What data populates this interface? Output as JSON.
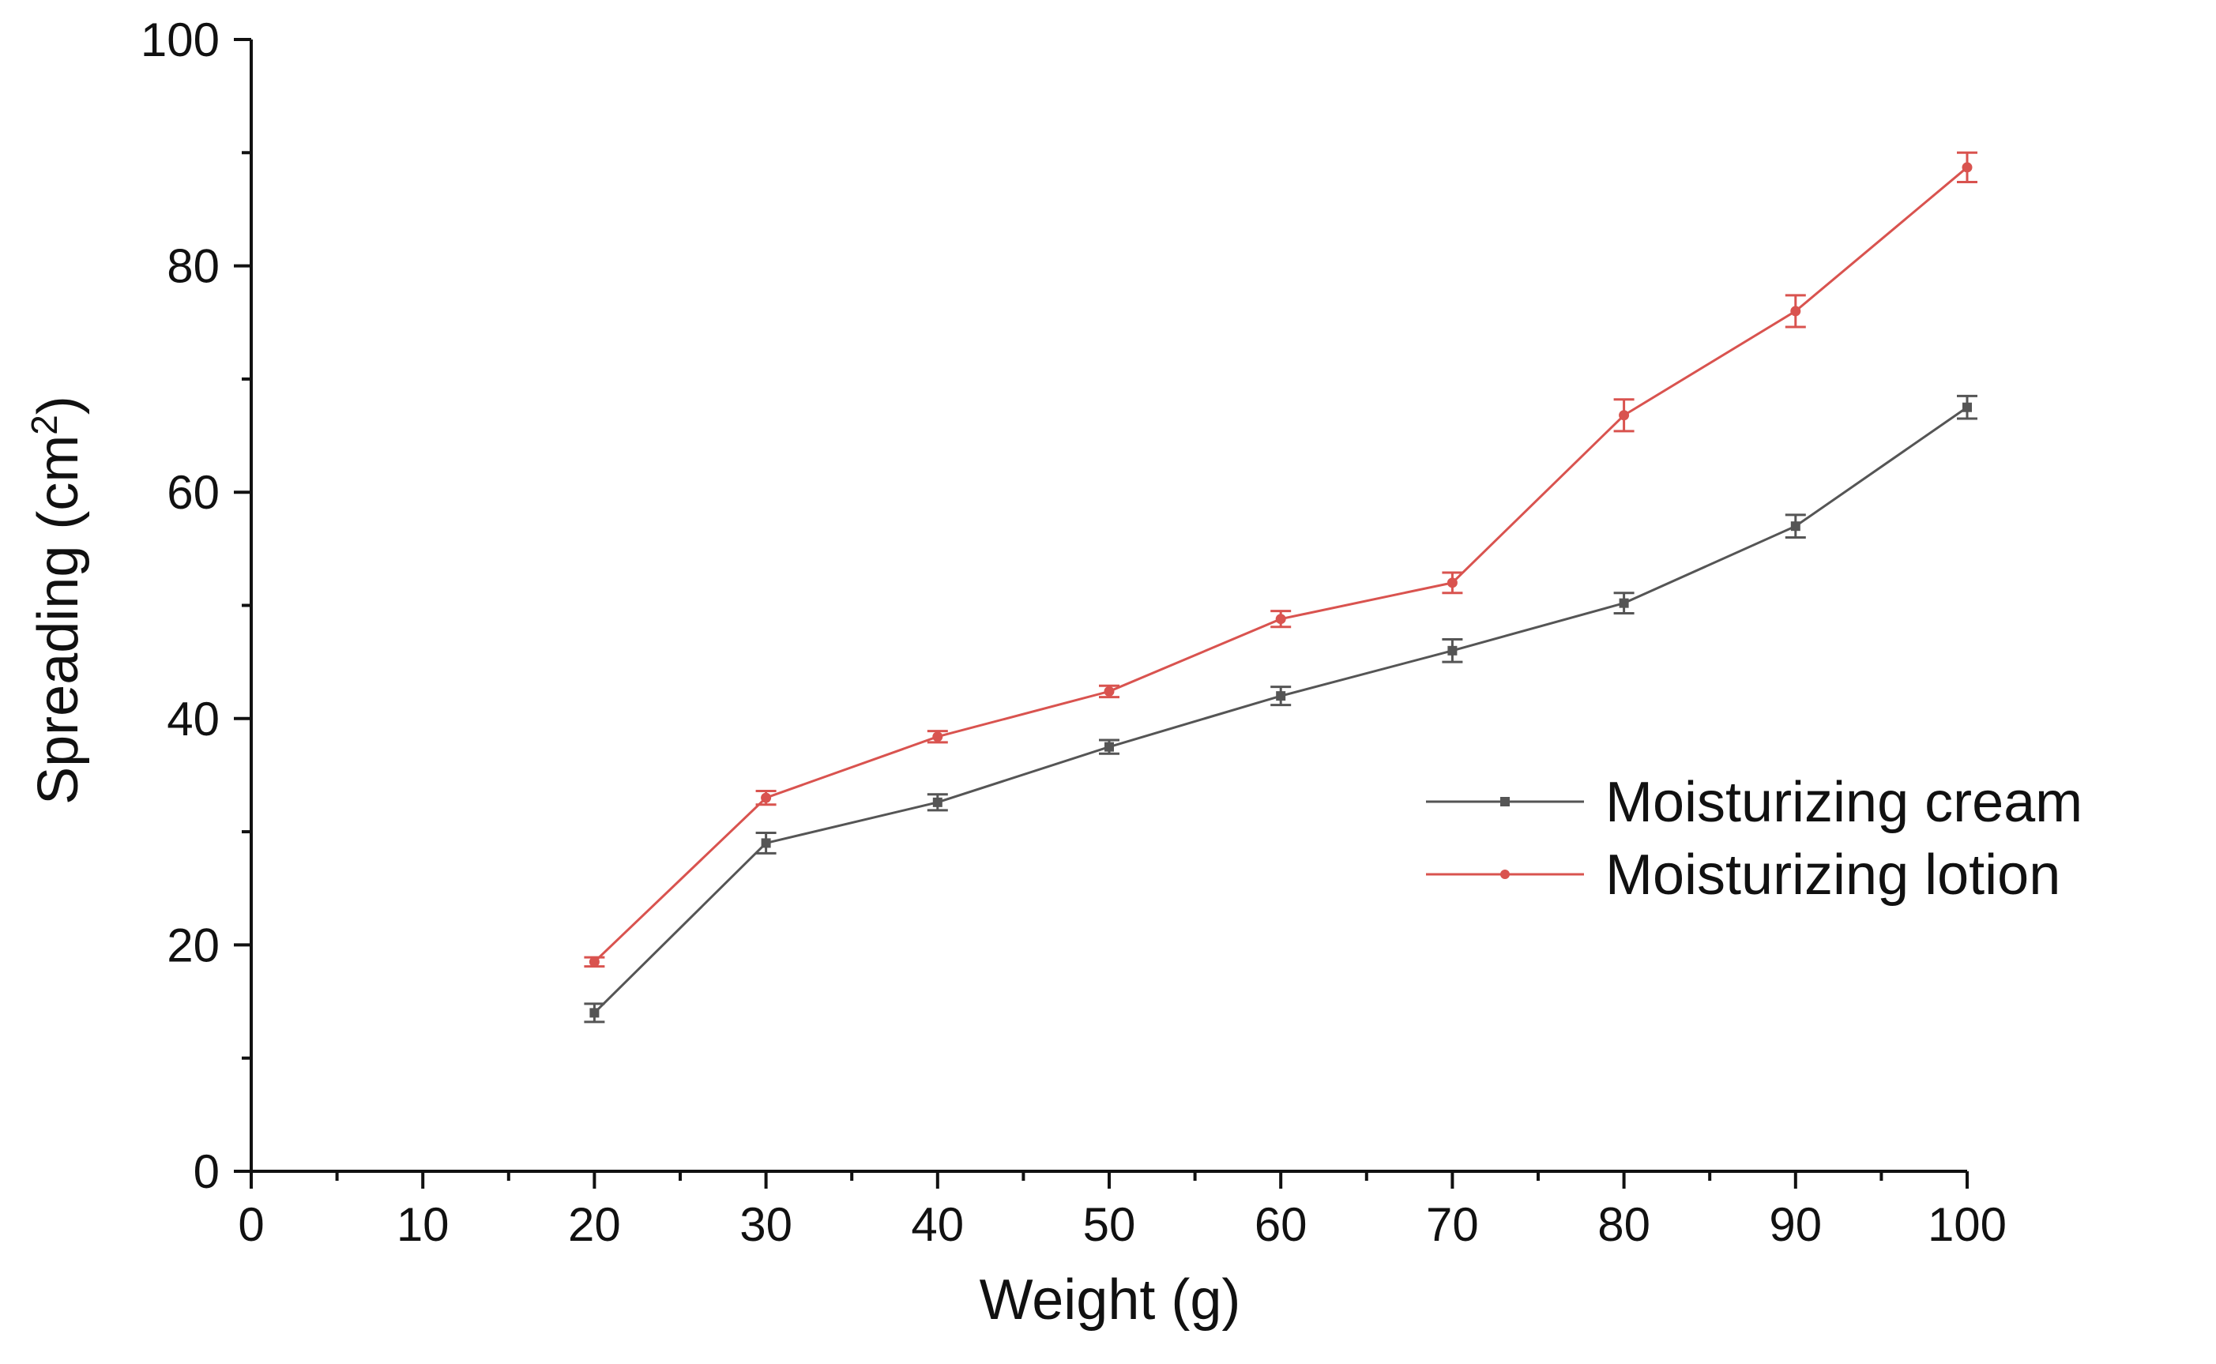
{
  "chart_data": {
    "type": "line",
    "title": "",
    "xlabel": "Weight (g)",
    "ylabel_main": "Spreading (cm",
    "ylabel_sup": "2",
    "ylabel_close": ")",
    "xlim": [
      0,
      100
    ],
    "ylim": [
      0,
      100
    ],
    "x_ticks": [
      "0",
      "10",
      "20",
      "30",
      "40",
      "50",
      "60",
      "70",
      "80",
      "90",
      "100"
    ],
    "y_ticks": [
      "0",
      "20",
      "40",
      "60",
      "80",
      "100"
    ],
    "x": [
      20,
      30,
      40,
      50,
      60,
      70,
      80,
      90,
      100
    ],
    "legend_position": "center-right",
    "series": [
      {
        "name": "Moisturizing cream",
        "color": "#555555",
        "marker": "square",
        "values": [
          14.0,
          29.0,
          32.6,
          37.5,
          42.0,
          46.0,
          50.2,
          57.0,
          67.5
        ],
        "errors": [
          0.8,
          0.9,
          0.7,
          0.6,
          0.8,
          1.0,
          0.9,
          1.0,
          1.0
        ]
      },
      {
        "name": "Moisturizing lotion",
        "color": "#d9534f",
        "marker": "circle",
        "values": [
          18.5,
          33.0,
          38.4,
          42.4,
          48.8,
          52.0,
          66.8,
          76.0,
          88.7
        ],
        "errors": [
          0.4,
          0.6,
          0.5,
          0.5,
          0.7,
          0.9,
          1.4,
          1.4,
          1.3
        ]
      }
    ]
  }
}
